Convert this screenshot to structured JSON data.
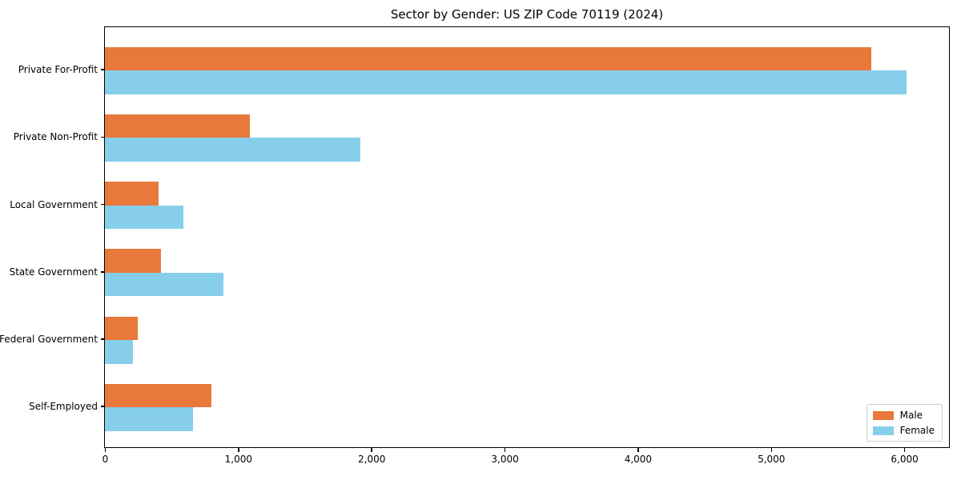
{
  "chart_data": {
    "type": "bar",
    "orientation": "horizontal",
    "title": "Sector by Gender: US ZIP Code 70119 (2024)",
    "categories": [
      "Private For-Profit",
      "Private Non-Profit",
      "Local Government",
      "State Government",
      "Federal Government",
      "Self-Employed"
    ],
    "series": [
      {
        "name": "Male",
        "color": "#e8793b",
        "values": [
          5750,
          1090,
          400,
          420,
          245,
          800
        ]
      },
      {
        "name": "Female",
        "color": "#87ceeb",
        "values": [
          6020,
          1915,
          590,
          890,
          210,
          660
        ]
      }
    ],
    "xlabel": "",
    "ylabel": "",
    "xlim": [
      0,
      6330
    ],
    "xticks": [
      0,
      1000,
      2000,
      3000,
      4000,
      5000,
      6000
    ],
    "xtick_labels": [
      "0",
      "1,000",
      "2,000",
      "3,000",
      "4,000",
      "5,000",
      "6,000"
    ],
    "grid": false,
    "legend_position": "lower right",
    "axis_color": "#000000",
    "background_color": "#ffffff"
  }
}
